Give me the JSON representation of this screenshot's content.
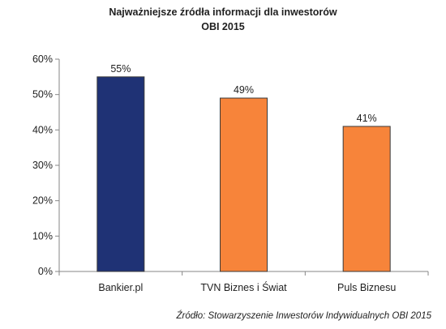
{
  "chart_data": {
    "type": "bar",
    "title_lines": [
      "Najważniejsze źródła informacji dla inwestorów",
      "OBI 2015"
    ],
    "categories": [
      "Bankier.pl",
      "TVN Biznes i Świat",
      "Puls Biznesu"
    ],
    "values": [
      55,
      49,
      41
    ],
    "data_labels": [
      "55%",
      "49%",
      "41%"
    ],
    "bar_colors": [
      "#1f3275",
      "#f7843a",
      "#f7843a"
    ],
    "ylim": [
      0,
      60
    ],
    "yticks": [
      0,
      10,
      20,
      30,
      40,
      50,
      60
    ],
    "ytick_labels": [
      "0%",
      "10%",
      "20%",
      "30%",
      "40%",
      "50%",
      "60%"
    ],
    "grid": false,
    "legend": "none",
    "xlabel": "",
    "ylabel": ""
  },
  "footer": {
    "source": "Źródło: Stowarzyszenie Inwestorów Indywidualnych OBI 2015"
  }
}
